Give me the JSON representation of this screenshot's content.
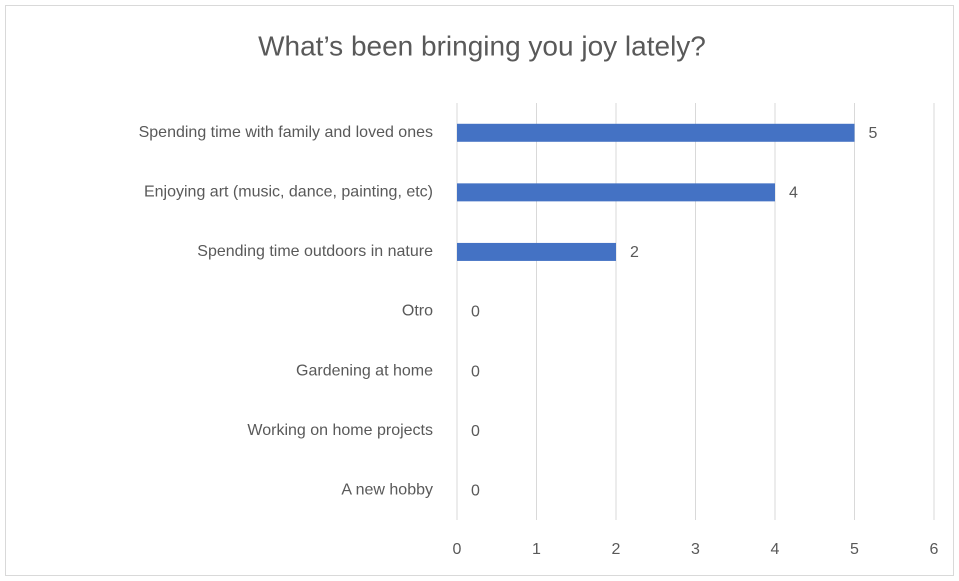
{
  "chart_data": {
    "type": "bar",
    "orientation": "horizontal",
    "title": "What’s been bringing you joy lately?",
    "categories": [
      "Spending time with family and loved ones",
      "Enjoying art (music, dance, painting, etc)",
      "Spending time outdoors in nature",
      "Otro",
      "Gardening at home",
      "Working on home projects",
      "A new hobby"
    ],
    "values": [
      5,
      4,
      2,
      0,
      0,
      0,
      0
    ],
    "color": "#4472c4",
    "xlim": [
      0,
      6
    ],
    "xticks": [
      0,
      1,
      2,
      3,
      4,
      5,
      6
    ],
    "grid": true,
    "data_labels": true
  }
}
